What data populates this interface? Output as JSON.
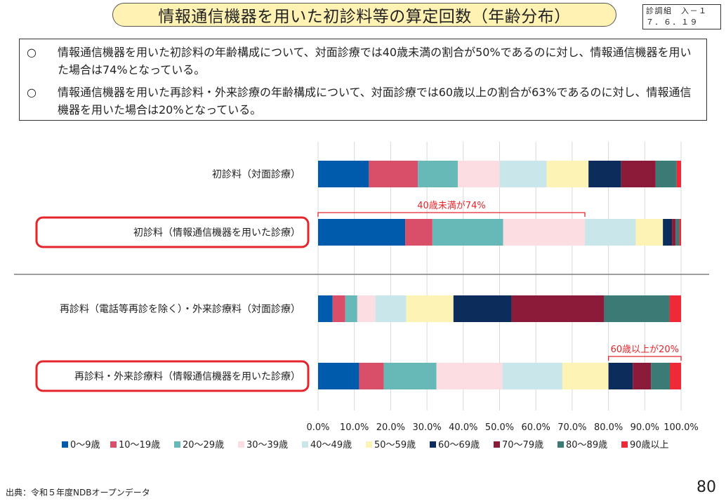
{
  "header": {
    "title": "情報通信機器を用いた初診料等の算定回数（年齢分布）",
    "doc_id_line1": "診調組　入－１",
    "doc_id_line2": "７．６．１９"
  },
  "summary": {
    "bullets": [
      {
        "mark": "○",
        "text": "情報通信機器を用いた初診料の年齢構成について、対面診療では40歳未満の割合が50%であるのに対し、情報通信機器を用いた場合は74%となっている。"
      },
      {
        "mark": "○",
        "text": "情報通信機器を用いた再診料・外来診療の年齢構成について、対面診療では60歳以上の割合が63%であるのに対し、情報通信機器を用いた場合は20%となっている。"
      }
    ]
  },
  "chart_data": {
    "type": "bar",
    "orientation": "horizontal",
    "stacked": true,
    "categories": [
      "初診料（対面診療）",
      "初診料（情報通信機器を用いた診療）",
      "再診料（電話等再診を除く）・外来診療料（対面診療）",
      "再診料・外来診療料（情報通信機器を用いた診療）"
    ],
    "highlighted_categories": [
      1,
      3
    ],
    "series": [
      {
        "name": "0～9歳",
        "color": "#005bac",
        "values": [
          14.0,
          24.0,
          4.0,
          11.3
        ]
      },
      {
        "name": "10～19歳",
        "color": "#d94f6a",
        "values": [
          13.5,
          7.5,
          3.5,
          6.8
        ]
      },
      {
        "name": "20～29歳",
        "color": "#66b9b6",
        "values": [
          11.0,
          19.5,
          3.3,
          14.5
        ]
      },
      {
        "name": "30～39歳",
        "color": "#fcdde1",
        "values": [
          11.5,
          22.5,
          5.0,
          18.2
        ]
      },
      {
        "name": "40～49歳",
        "color": "#c9e7ea",
        "values": [
          13.0,
          14.0,
          8.5,
          16.5
        ]
      },
      {
        "name": "50～59歳",
        "color": "#fdf3b5",
        "values": [
          11.5,
          7.5,
          13.0,
          12.7
        ]
      },
      {
        "name": "60～69歳",
        "color": "#0c2d5b",
        "values": [
          9.0,
          2.5,
          16.0,
          6.7
        ]
      },
      {
        "name": "70～79歳",
        "color": "#8c1b3a",
        "values": [
          9.5,
          1.0,
          25.5,
          5.0
        ]
      },
      {
        "name": "80～89歳",
        "color": "#3c7a75",
        "values": [
          5.8,
          1.0,
          18.0,
          5.2
        ]
      },
      {
        "name": "90歳以上",
        "color": "#ee2a39",
        "values": [
          1.2,
          0.5,
          3.2,
          3.1
        ]
      }
    ],
    "xlim": [
      0,
      100
    ],
    "x_ticks": [
      "0.0%",
      "10.0%",
      "20.0%",
      "30.0%",
      "40.0%",
      "50.0%",
      "60.0%",
      "70.0%",
      "80.0%",
      "90.0%",
      "100.0%"
    ],
    "grid": true,
    "legend_placement": "bottom",
    "annotations": [
      {
        "text": "40歳未満が74%",
        "category": 1,
        "from": 0,
        "to": 73.5,
        "color": "#e5252b"
      },
      {
        "text": "60歳以上が20%",
        "category": 3,
        "from": 80,
        "to": 100,
        "color": "#e5252b"
      }
    ]
  },
  "footer": {
    "source": "出典：令和５年度NDBオープンデータ",
    "page_number": "80"
  }
}
